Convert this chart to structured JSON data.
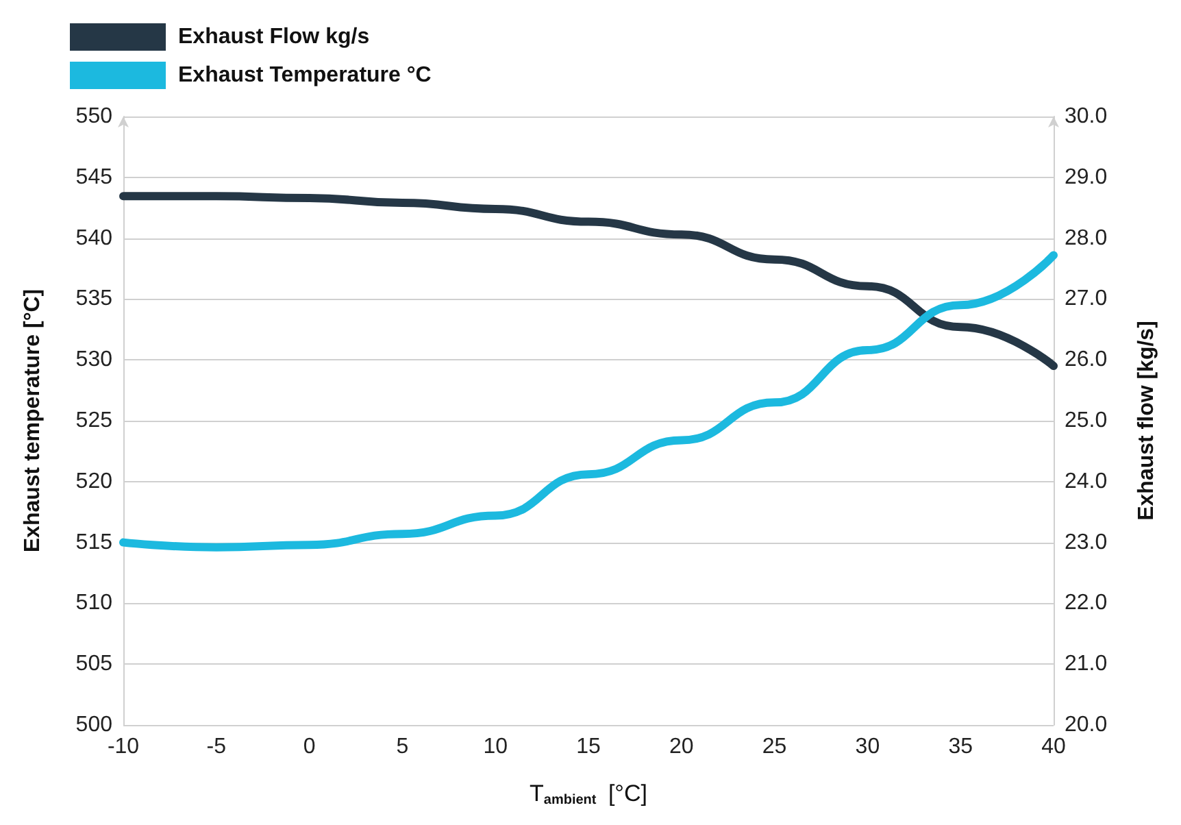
{
  "chart_data": {
    "type": "line",
    "xlabel": "T$_{ambient}$ [°C]",
    "ylabel": "Exhaust temperature [°C]",
    "y2label": "Exhaust flow [kg/s]",
    "x": [
      -10,
      -5,
      0,
      5,
      10,
      15,
      20,
      25,
      30,
      35,
      40
    ],
    "series": [
      {
        "name": "Exhaust Flow kg/s",
        "color": "#253746",
        "axis": "y2",
        "values": [
          28.69,
          28.69,
          28.66,
          28.58,
          28.48,
          28.27,
          28.06,
          27.65,
          27.21,
          26.54,
          25.9
        ]
      },
      {
        "name": "Exhaust Temperature °C",
        "color": "#1cb9df",
        "values": [
          515.0,
          514.6,
          514.8,
          515.7,
          517.2,
          520.6,
          523.4,
          526.5,
          530.8,
          534.5,
          538.6
        ]
      }
    ],
    "xlim": [
      -10,
      40
    ],
    "xticks": [
      -10,
      -5,
      0,
      5,
      10,
      15,
      20,
      25,
      30,
      35,
      40
    ],
    "ylim": [
      500,
      550
    ],
    "yticks": [
      500,
      505,
      510,
      515,
      520,
      525,
      530,
      535,
      540,
      545,
      550
    ],
    "y2lim": [
      20,
      30
    ],
    "y2ticks": [
      {
        "value": 20,
        "label": "20.0"
      },
      {
        "value": 21,
        "label": "21.0"
      },
      {
        "value": 22,
        "label": "22.0"
      },
      {
        "value": 23,
        "label": "23.0"
      },
      {
        "value": 24,
        "label": "24.0"
      },
      {
        "value": 25,
        "label": "25.0"
      },
      {
        "value": 26,
        "label": "26.0"
      },
      {
        "value": 27,
        "label": "27.0"
      },
      {
        "value": 28,
        "label": "28.0"
      },
      {
        "value": 29,
        "label": "29.0"
      },
      {
        "value": 30,
        "label": "30.0"
      }
    ],
    "grid": "y",
    "legend": "top left",
    "marker": "none",
    "line_style": "solid"
  }
}
